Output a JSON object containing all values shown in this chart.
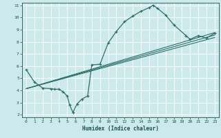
{
  "title": "",
  "xlabel": "Humidex (Indice chaleur)",
  "bg_color": "#cce9ec",
  "grid_color": "#ffffff",
  "line_color": "#2d7068",
  "marker_color": "#2d7068",
  "xlim": [
    -0.5,
    23.5
  ],
  "ylim": [
    1.8,
    11.2
  ],
  "xticks": [
    0,
    1,
    2,
    3,
    4,
    5,
    6,
    7,
    8,
    9,
    10,
    11,
    12,
    13,
    14,
    15,
    16,
    17,
    18,
    19,
    20,
    21,
    22,
    23
  ],
  "yticks": [
    2,
    3,
    4,
    5,
    6,
    7,
    8,
    9,
    10,
    11
  ],
  "curve1_x": [
    0,
    1,
    2,
    3,
    3.5,
    4,
    4.5,
    5,
    5.3,
    5.7,
    6.2,
    6.8,
    7.5,
    8.0,
    9.0,
    10.0,
    11.0,
    12.0,
    13.0,
    14.0,
    15.0,
    15.5,
    16.0,
    17.0,
    18.0,
    19.5,
    20.0,
    21.0,
    22.0,
    23.0
  ],
  "curve1_y": [
    5.7,
    4.7,
    4.2,
    4.15,
    4.1,
    4.1,
    3.9,
    3.55,
    2.8,
    2.2,
    2.9,
    3.3,
    3.55,
    6.1,
    6.15,
    7.9,
    8.85,
    9.65,
    10.1,
    10.5,
    10.8,
    11.0,
    10.75,
    10.2,
    9.4,
    8.5,
    8.2,
    8.5,
    8.3,
    8.7
  ],
  "line2_x": [
    0,
    23
  ],
  "line2_y": [
    4.15,
    8.55
  ],
  "line3_x": [
    0,
    23
  ],
  "line3_y": [
    4.15,
    8.75
  ],
  "line4_x": [
    0,
    23
  ],
  "line4_y": [
    4.15,
    8.35
  ]
}
